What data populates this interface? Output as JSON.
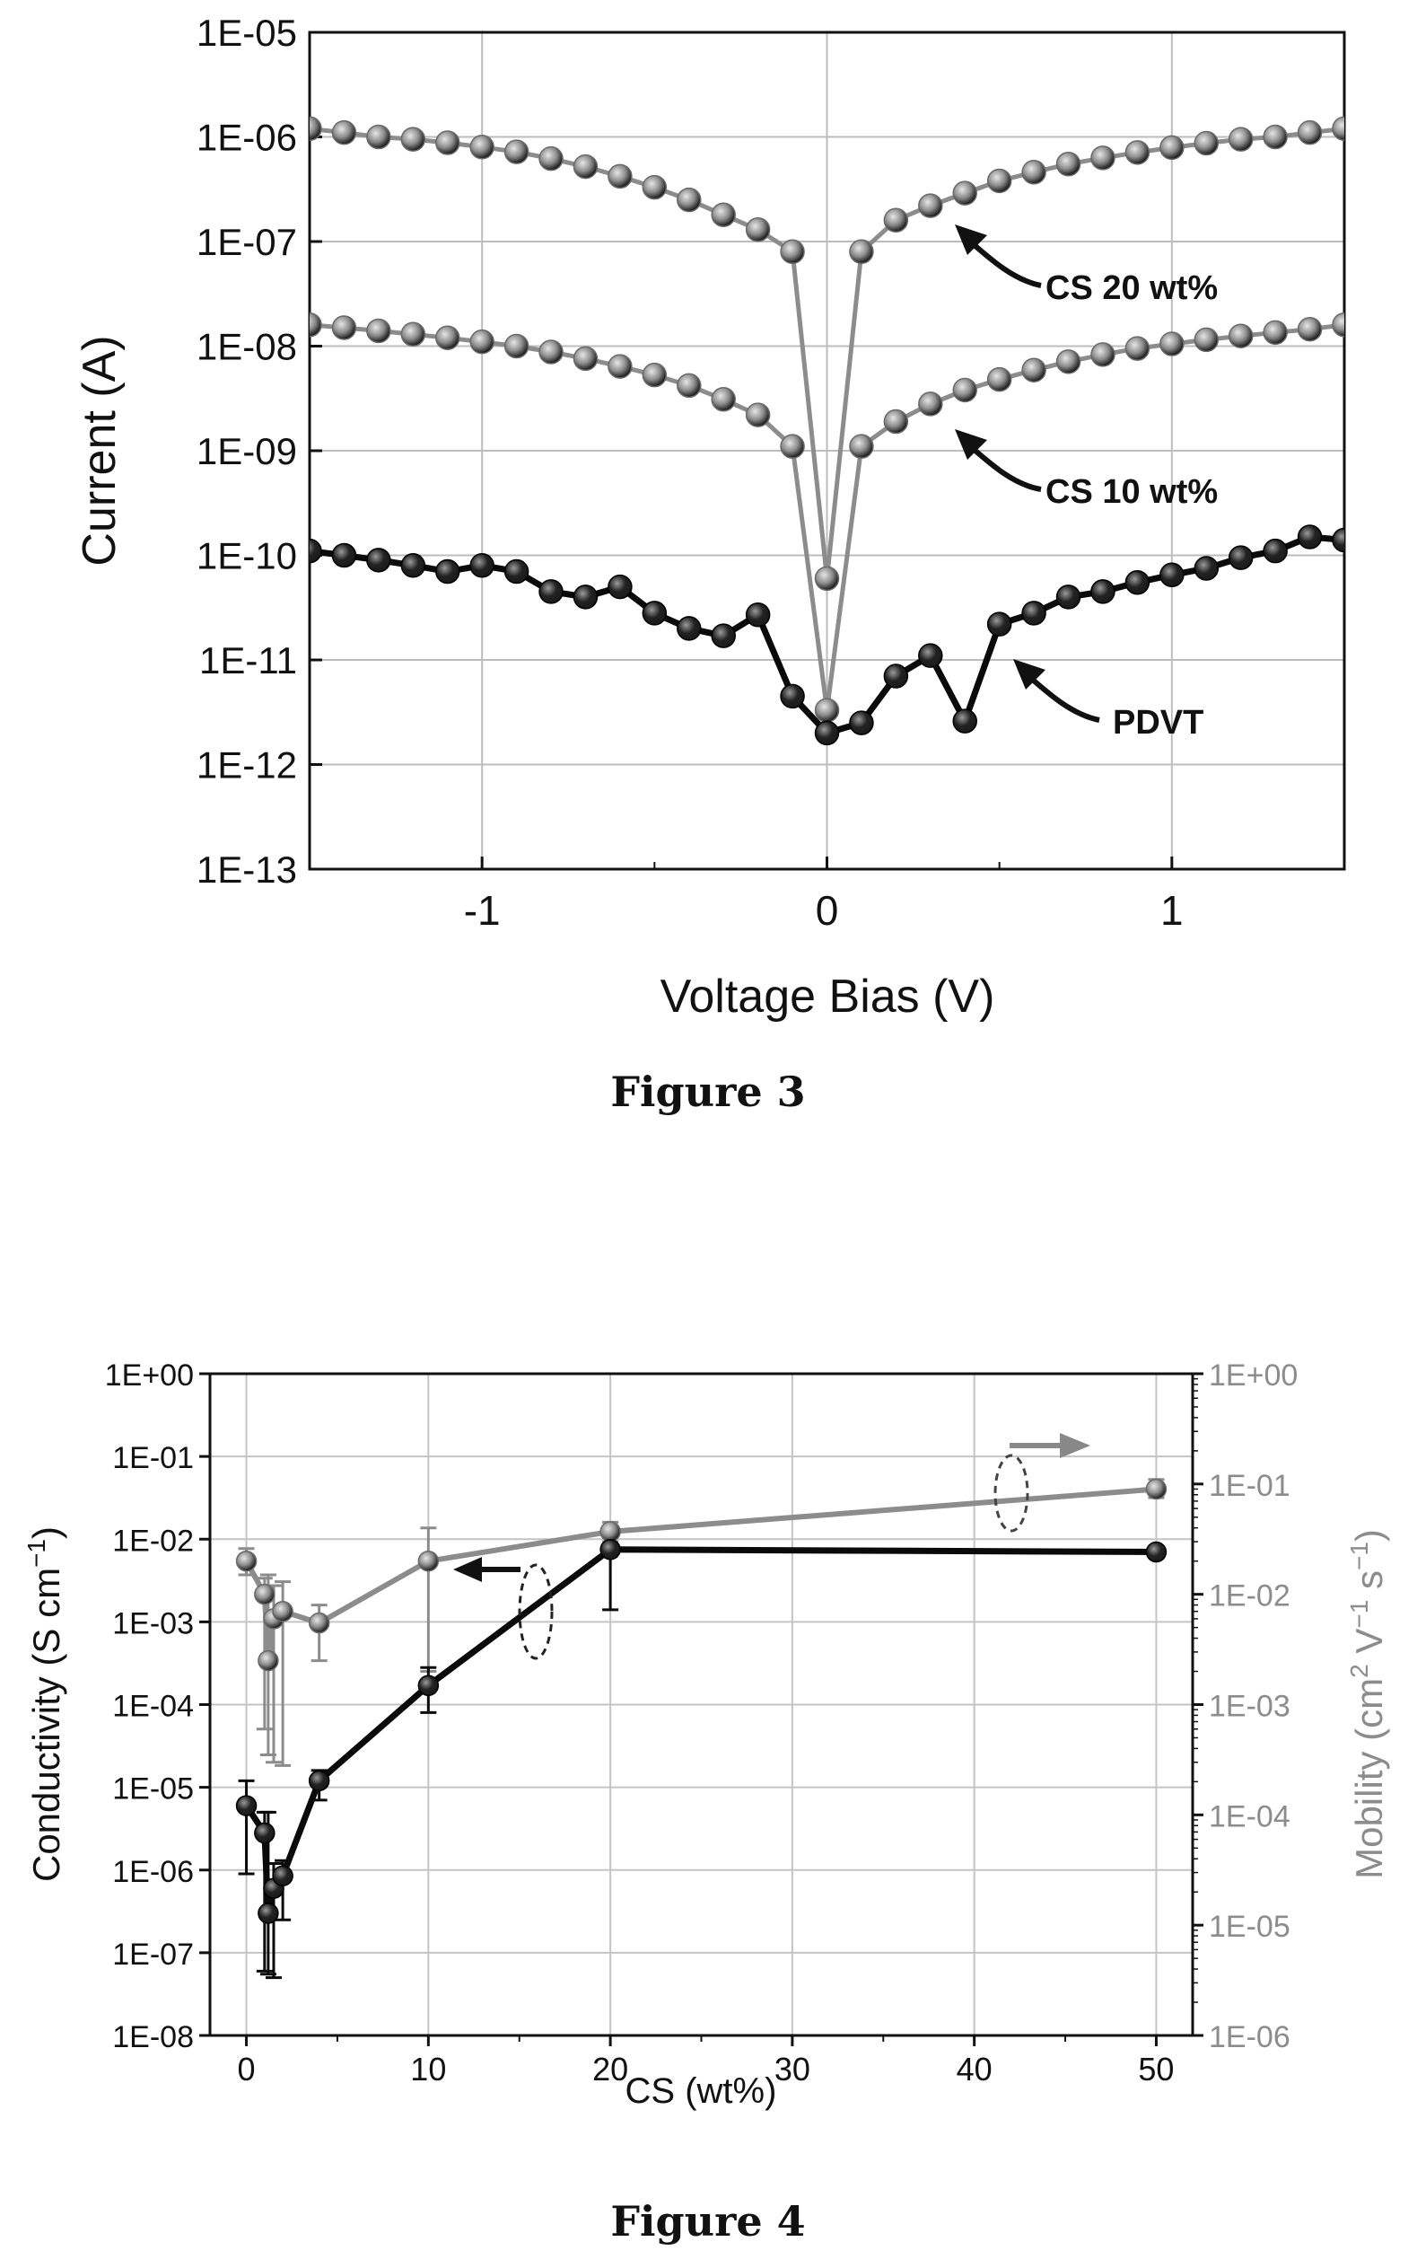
{
  "chart_data": [
    {
      "type": "line",
      "caption": "Figure 3",
      "xlabel": "Voltage Bias (V)",
      "ylabel": "Current (A)",
      "xlim": [
        -1.5,
        1.5
      ],
      "ylim": [
        1e-13,
        1e-05
      ],
      "yscale": "log",
      "grid": true,
      "x_ticks": [
        -1,
        0,
        1
      ],
      "x_tick_labels": [
        "-1",
        "0",
        "1"
      ],
      "y_ticks": [
        1e-13,
        1e-12,
        1e-11,
        1e-10,
        1e-09,
        1e-08,
        1e-07,
        1e-06,
        1e-05
      ],
      "y_tick_labels": [
        "1E-13",
        "1E-12",
        "1E-11",
        "1E-10",
        "1E-09",
        "1E-08",
        "1E-07",
        "1E-06",
        "1E-05"
      ],
      "x": [
        -1.5,
        -1.4,
        -1.3,
        -1.2,
        -1.1,
        -1.0,
        -0.9,
        -0.8,
        -0.7,
        -0.6,
        -0.5,
        -0.4,
        -0.3,
        -0.2,
        -0.1,
        0.0,
        0.1,
        0.2,
        0.3,
        0.4,
        0.5,
        0.6,
        0.7,
        0.8,
        0.9,
        1.0,
        1.1,
        1.2,
        1.3,
        1.4,
        1.5
      ],
      "series": [
        {
          "name": "CS 20 wt%",
          "color": "#8c8c8c",
          "values": [
            1.2e-06,
            1.1e-06,
            1e-06,
            9.5e-07,
            8.8e-07,
            8e-07,
            7.2e-07,
            6.2e-07,
            5.2e-07,
            4.2e-07,
            3.3e-07,
            2.5e-07,
            1.8e-07,
            1.3e-07,
            8e-08,
            6e-11,
            8e-08,
            1.6e-07,
            2.2e-07,
            2.9e-07,
            3.8e-07,
            4.6e-07,
            5.5e-07,
            6.3e-07,
            7.1e-07,
            7.9e-07,
            8.7e-07,
            9.5e-07,
            1e-06,
            1.1e-06,
            1.2e-06
          ]
        },
        {
          "name": "CS 10 wt%",
          "color": "#8c8c8c",
          "values": [
            1.6e-08,
            1.5e-08,
            1.4e-08,
            1.3e-08,
            1.2e-08,
            1.1e-08,
            1e-08,
            8.8e-09,
            7.6e-09,
            6.4e-09,
            5.3e-09,
            4.2e-09,
            3.1e-09,
            2.2e-09,
            1.1e-09,
            3.3e-12,
            1.1e-09,
            1.9e-09,
            2.8e-09,
            3.8e-09,
            4.8e-09,
            5.9e-09,
            7.1e-09,
            8.3e-09,
            9.5e-09,
            1.05e-08,
            1.15e-08,
            1.25e-08,
            1.35e-08,
            1.45e-08,
            1.6e-08
          ]
        },
        {
          "name": "PDVT",
          "color": "#111111",
          "values": [
            1.1e-10,
            1e-10,
            9e-11,
            8e-11,
            7e-11,
            8e-11,
            7e-11,
            4.5e-11,
            4e-11,
            5e-11,
            2.8e-11,
            2e-11,
            1.7e-11,
            2.7e-11,
            4.5e-12,
            2e-12,
            2.5e-12,
            7e-12,
            1.1e-11,
            2.6e-12,
            2.2e-11,
            2.8e-11,
            4e-11,
            4.5e-11,
            5.5e-11,
            6.5e-11,
            7.5e-11,
            9.5e-11,
            1.1e-10,
            1.5e-10,
            1.4e-10
          ]
        }
      ],
      "annotations": [
        "CS 20 wt%",
        "CS 10 wt%",
        "PDVT"
      ]
    },
    {
      "type": "line",
      "caption": "Figure 4",
      "xlabel": "CS (wt%)",
      "ylabel": "Conductivity (S cm",
      "ylabel_sup": "−1",
      "ylabel_end": ")",
      "y2label_parts": [
        "Mobility (cm",
        "2",
        " V",
        "−1",
        " s",
        "−1",
        ")"
      ],
      "xlim": [
        -2,
        52
      ],
      "ylim": [
        1e-08,
        1
      ],
      "yscale": "log",
      "y2lim": [
        1e-06,
        1
      ],
      "y2scale": "log",
      "grid": true,
      "x_ticks": [
        0,
        10,
        20,
        30,
        40,
        50
      ],
      "x_tick_labels": [
        "0",
        "10",
        "20",
        "30",
        "40",
        "50"
      ],
      "y_ticks": [
        1e-08,
        1e-07,
        1e-06,
        1e-05,
        0.0001,
        0.001,
        0.01,
        0.1,
        1
      ],
      "y_tick_labels": [
        "1E-08",
        "1E-07",
        "1E-06",
        "1E-05",
        "1E-04",
        "1E-03",
        "1E-02",
        "1E-01",
        "1E+00"
      ],
      "y2_ticks": [
        1e-06,
        1e-05,
        0.0001,
        0.001,
        0.01,
        0.1,
        1
      ],
      "y2_tick_labels": [
        "1E-06",
        "1E-05",
        "1E-04",
        "1E-03",
        "1E-02",
        "1E-01",
        "1E+00"
      ],
      "series": [
        {
          "name": "Conductivity",
          "axis": "left",
          "color": "#111111",
          "x": [
            0,
            1,
            1.2,
            1.5,
            2,
            4,
            10,
            20,
            50
          ],
          "y": [
            6e-06,
            2.8e-06,
            3e-07,
            6e-07,
            8.5e-07,
            1.2e-05,
            0.00017,
            0.0075,
            0.007
          ],
          "err_low": [
            9e-07,
            6e-08,
            5.5e-08,
            5e-08,
            2.5e-07,
            7e-06,
            8e-05,
            0.0014,
            0.006
          ],
          "err_high": [
            1.2e-05,
            5e-06,
            5e-06,
            1.2e-06,
            1.3e-06,
            1.6e-05,
            0.00028,
            0.008,
            0.008
          ]
        },
        {
          "name": "Mobility",
          "axis": "right",
          "color": "#8c8c8c",
          "x": [
            0,
            1,
            1.2,
            1.5,
            2,
            4,
            10,
            20,
            50
          ],
          "y": [
            0.02,
            0.01,
            0.0025,
            0.006,
            0.007,
            0.0055,
            0.02,
            0.037,
            0.09
          ],
          "err_low": [
            0.015,
            0.0006,
            0.00035,
            0.0003,
            0.00028,
            0.0025,
            0.002,
            0.03,
            0.075
          ],
          "err_high": [
            0.026,
            0.014,
            0.015,
            0.012,
            0.013,
            0.008,
            0.04,
            0.045,
            0.11
          ]
        }
      ]
    }
  ]
}
